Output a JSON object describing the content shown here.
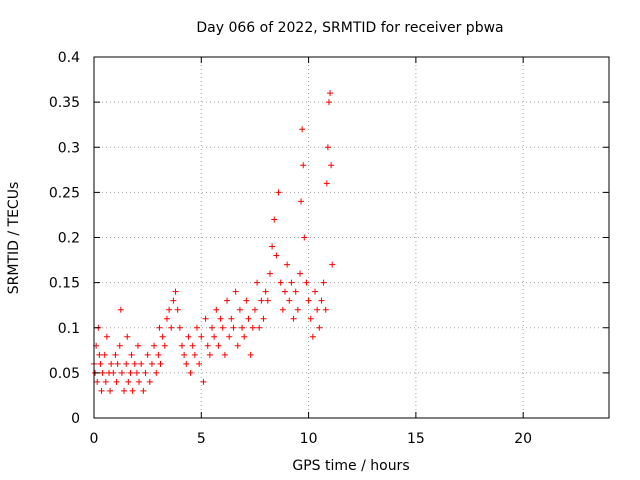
{
  "chart_data": {
    "type": "scatter",
    "title": "Day 066 of 2022, SRMTID for receiver pbwa",
    "xlabel": "GPS time / hours",
    "ylabel": "SRMTID / TECUs",
    "xlim": [
      0,
      24
    ],
    "ylim": [
      0,
      0.4
    ],
    "xticks": [
      0,
      5,
      10,
      15,
      20
    ],
    "xtick_labels": [
      "0",
      "5",
      "10",
      "15",
      "20"
    ],
    "yticks": [
      0,
      0.05,
      0.1,
      0.15,
      0.2,
      0.25,
      0.3,
      0.35,
      0.4
    ],
    "ytick_labels": [
      "0",
      "0.05",
      "0.1",
      "0.15",
      "0.2",
      "0.25",
      "0.3",
      "0.35",
      "0.4"
    ],
    "grid": true,
    "marker": "+",
    "color": "#ff0000",
    "series": [
      {
        "name": "SRMTID",
        "points": [
          [
            0.0,
            0.06
          ],
          [
            0.05,
            0.05
          ],
          [
            0.1,
            0.08
          ],
          [
            0.15,
            0.04
          ],
          [
            0.2,
            0.1
          ],
          [
            0.25,
            0.07
          ],
          [
            0.3,
            0.06
          ],
          [
            0.35,
            0.03
          ],
          [
            0.4,
            0.05
          ],
          [
            0.5,
            0.07
          ],
          [
            0.55,
            0.04
          ],
          [
            0.6,
            0.09
          ],
          [
            0.7,
            0.05
          ],
          [
            0.75,
            0.03
          ],
          [
            0.8,
            0.06
          ],
          [
            0.9,
            0.05
          ],
          [
            1.0,
            0.07
          ],
          [
            1.05,
            0.04
          ],
          [
            1.1,
            0.06
          ],
          [
            1.2,
            0.08
          ],
          [
            1.25,
            0.12
          ],
          [
            1.3,
            0.05
          ],
          [
            1.4,
            0.03
          ],
          [
            1.5,
            0.06
          ],
          [
            1.55,
            0.09
          ],
          [
            1.6,
            0.04
          ],
          [
            1.7,
            0.05
          ],
          [
            1.75,
            0.07
          ],
          [
            1.8,
            0.03
          ],
          [
            1.9,
            0.06
          ],
          [
            2.0,
            0.05
          ],
          [
            2.05,
            0.08
          ],
          [
            2.1,
            0.04
          ],
          [
            2.2,
            0.06
          ],
          [
            2.3,
            0.03
          ],
          [
            2.4,
            0.05
          ],
          [
            2.5,
            0.07
          ],
          [
            2.6,
            0.04
          ],
          [
            2.7,
            0.06
          ],
          [
            2.8,
            0.08
          ],
          [
            2.9,
            0.05
          ],
          [
            3.0,
            0.07
          ],
          [
            3.05,
            0.1
          ],
          [
            3.1,
            0.06
          ],
          [
            3.2,
            0.09
          ],
          [
            3.3,
            0.08
          ],
          [
            3.4,
            0.11
          ],
          [
            3.5,
            0.12
          ],
          [
            3.6,
            0.1
          ],
          [
            3.7,
            0.13
          ],
          [
            3.8,
            0.14
          ],
          [
            3.9,
            0.12
          ],
          [
            4.0,
            0.1
          ],
          [
            4.1,
            0.08
          ],
          [
            4.2,
            0.07
          ],
          [
            4.3,
            0.06
          ],
          [
            4.4,
            0.09
          ],
          [
            4.5,
            0.05
          ],
          [
            4.6,
            0.08
          ],
          [
            4.7,
            0.07
          ],
          [
            4.8,
            0.1
          ],
          [
            4.9,
            0.06
          ],
          [
            5.0,
            0.09
          ],
          [
            5.1,
            0.04
          ],
          [
            5.2,
            0.11
          ],
          [
            5.3,
            0.08
          ],
          [
            5.4,
            0.07
          ],
          [
            5.5,
            0.1
          ],
          [
            5.6,
            0.09
          ],
          [
            5.7,
            0.12
          ],
          [
            5.8,
            0.08
          ],
          [
            5.9,
            0.11
          ],
          [
            6.0,
            0.1
          ],
          [
            6.1,
            0.07
          ],
          [
            6.2,
            0.13
          ],
          [
            6.3,
            0.09
          ],
          [
            6.4,
            0.11
          ],
          [
            6.5,
            0.1
          ],
          [
            6.6,
            0.14
          ],
          [
            6.7,
            0.08
          ],
          [
            6.8,
            0.12
          ],
          [
            6.9,
            0.1
          ],
          [
            7.0,
            0.09
          ],
          [
            7.1,
            0.13
          ],
          [
            7.2,
            0.11
          ],
          [
            7.3,
            0.07
          ],
          [
            7.4,
            0.1
          ],
          [
            7.5,
            0.12
          ],
          [
            7.6,
            0.15
          ],
          [
            7.7,
            0.1
          ],
          [
            7.8,
            0.13
          ],
          [
            7.9,
            0.11
          ],
          [
            8.0,
            0.14
          ],
          [
            8.1,
            0.13
          ],
          [
            8.2,
            0.16
          ],
          [
            8.3,
            0.19
          ],
          [
            8.4,
            0.22
          ],
          [
            8.5,
            0.18
          ],
          [
            8.6,
            0.25
          ],
          [
            8.7,
            0.15
          ],
          [
            8.8,
            0.12
          ],
          [
            8.9,
            0.14
          ],
          [
            9.0,
            0.17
          ],
          [
            9.1,
            0.13
          ],
          [
            9.2,
            0.15
          ],
          [
            9.3,
            0.11
          ],
          [
            9.4,
            0.14
          ],
          [
            9.5,
            0.12
          ],
          [
            9.6,
            0.16
          ],
          [
            9.65,
            0.24
          ],
          [
            9.7,
            0.32
          ],
          [
            9.75,
            0.28
          ],
          [
            9.8,
            0.2
          ],
          [
            9.9,
            0.15
          ],
          [
            10.0,
            0.13
          ],
          [
            10.1,
            0.11
          ],
          [
            10.2,
            0.09
          ],
          [
            10.3,
            0.14
          ],
          [
            10.4,
            0.12
          ],
          [
            10.5,
            0.1
          ],
          [
            10.6,
            0.13
          ],
          [
            10.7,
            0.15
          ],
          [
            10.8,
            0.12
          ],
          [
            10.85,
            0.26
          ],
          [
            10.9,
            0.3
          ],
          [
            10.95,
            0.35
          ],
          [
            11.0,
            0.36
          ],
          [
            11.05,
            0.28
          ],
          [
            11.1,
            0.17
          ]
        ]
      }
    ]
  }
}
